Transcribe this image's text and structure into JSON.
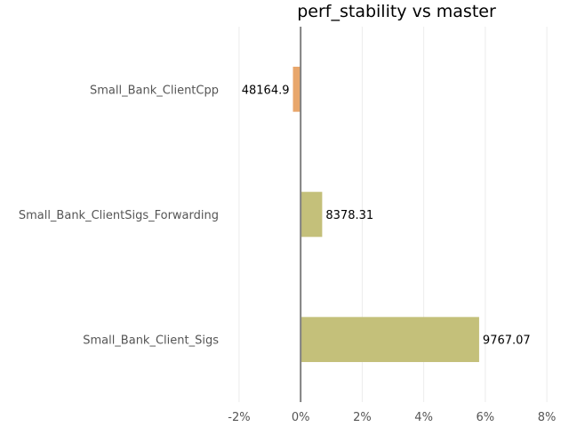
{
  "chart_data": {
    "type": "bar",
    "orientation": "horizontal",
    "title": "perf_stability vs master",
    "xlabel": "",
    "ylabel": "",
    "x_axis_format": "percent",
    "xlim": [
      -2.2,
      8.2
    ],
    "xticks": [
      -2,
      0,
      2,
      4,
      6,
      8
    ],
    "xtick_labels": [
      "-2%",
      "0%",
      "2%",
      "4%",
      "6%",
      "8%"
    ],
    "grid": "vertical",
    "categories": [
      "Small_Bank_ClientCpp",
      "Small_Bank_ClientSigs_Forwarding",
      "Small_Bank_Client_Sigs"
    ],
    "values": [
      -0.25,
      0.7,
      5.8
    ],
    "data_labels": [
      "48164.9",
      "8378.31",
      "9767.07"
    ],
    "colors": [
      "#e8a66b",
      "#c4c07a",
      "#c4c07a"
    ]
  }
}
